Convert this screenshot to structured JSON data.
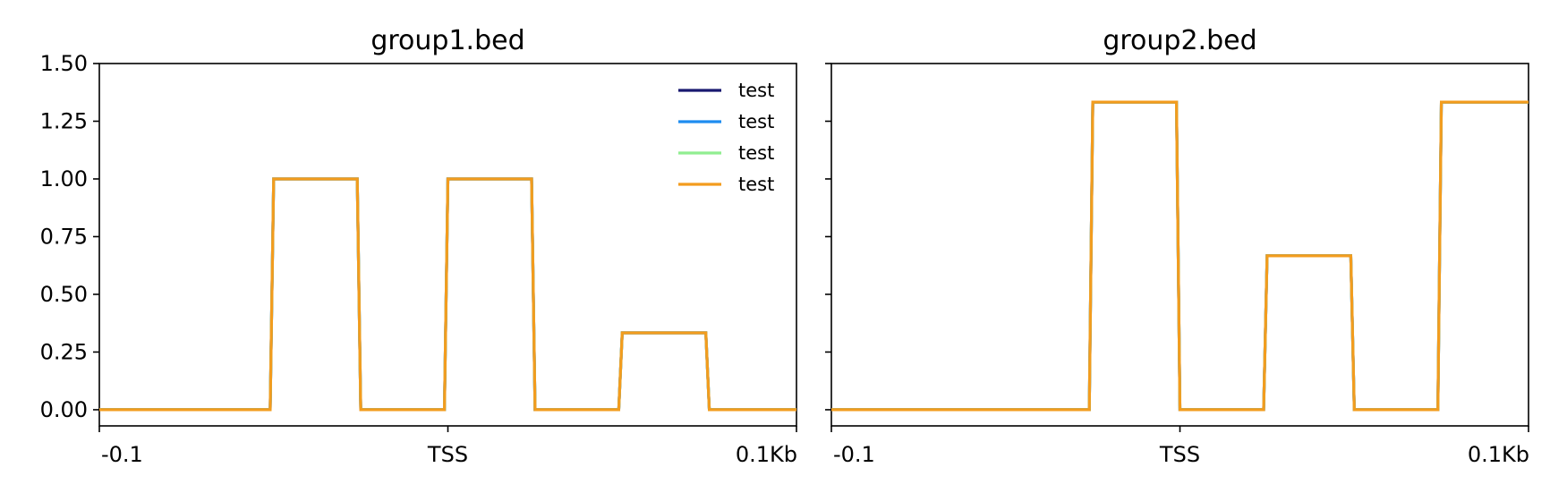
{
  "chart_data": [
    {
      "type": "line",
      "title": "group1.bed",
      "xlabel": "",
      "ylabel": "",
      "ylim": [
        -0.07,
        1.5
      ],
      "y_ticks": [
        "0.00",
        "0.25",
        "0.50",
        "0.75",
        "1.00",
        "1.25",
        "1.50"
      ],
      "x_ticks": [
        {
          "label": "-0.1",
          "pos": 0
        },
        {
          "label": "TSS",
          "pos": 0.5
        },
        {
          "label": "0.1Kb",
          "pos": 1
        }
      ],
      "show_y_tick_labels": true,
      "legend": {
        "placement": "top-right"
      },
      "series": [
        {
          "name": "test",
          "color": "#191970",
          "points": [
            [
              0,
              0
            ],
            [
              0.245,
              0
            ],
            [
              0.25,
              1
            ],
            [
              0.37,
              1
            ],
            [
              0.375,
              0
            ],
            [
              0.495,
              0
            ],
            [
              0.5,
              1
            ],
            [
              0.62,
              1
            ],
            [
              0.625,
              0
            ],
            [
              0.745,
              0
            ],
            [
              0.75,
              0.333
            ],
            [
              0.87,
              0.333
            ],
            [
              0.875,
              0
            ],
            [
              1,
              0
            ]
          ]
        },
        {
          "name": "test",
          "color": "#1e8cf0",
          "points": [
            [
              0,
              0
            ],
            [
              0.245,
              0
            ],
            [
              0.25,
              1
            ],
            [
              0.37,
              1
            ],
            [
              0.375,
              0
            ],
            [
              0.495,
              0
            ],
            [
              0.5,
              1
            ],
            [
              0.62,
              1
            ],
            [
              0.625,
              0
            ],
            [
              0.745,
              0
            ],
            [
              0.75,
              0.333
            ],
            [
              0.87,
              0.333
            ],
            [
              0.875,
              0
            ],
            [
              1,
              0
            ]
          ]
        },
        {
          "name": "test",
          "color": "#90ee90",
          "points": [
            [
              0,
              0
            ],
            [
              0.245,
              0
            ],
            [
              0.25,
              1
            ],
            [
              0.37,
              1
            ],
            [
              0.375,
              0
            ],
            [
              0.495,
              0
            ],
            [
              0.5,
              1
            ],
            [
              0.62,
              1
            ],
            [
              0.625,
              0
            ],
            [
              0.745,
              0
            ],
            [
              0.75,
              0.333
            ],
            [
              0.87,
              0.333
            ],
            [
              0.875,
              0
            ],
            [
              1,
              0
            ]
          ]
        },
        {
          "name": "test",
          "color": "#f39c1e",
          "points": [
            [
              0,
              0
            ],
            [
              0.245,
              0
            ],
            [
              0.25,
              1
            ],
            [
              0.37,
              1
            ],
            [
              0.375,
              0
            ],
            [
              0.495,
              0
            ],
            [
              0.5,
              1
            ],
            [
              0.62,
              1
            ],
            [
              0.625,
              0
            ],
            [
              0.745,
              0
            ],
            [
              0.75,
              0.333
            ],
            [
              0.87,
              0.333
            ],
            [
              0.875,
              0
            ],
            [
              1,
              0
            ]
          ]
        }
      ]
    },
    {
      "type": "line",
      "title": "group2.bed",
      "xlabel": "",
      "ylabel": "",
      "ylim": [
        -0.07,
        1.5
      ],
      "y_ticks": [
        "0.00",
        "0.25",
        "0.50",
        "0.75",
        "1.00",
        "1.25",
        "1.50"
      ],
      "x_ticks": [
        {
          "label": "-0.1",
          "pos": 0
        },
        {
          "label": "TSS",
          "pos": 0.5
        },
        {
          "label": "0.1Kb",
          "pos": 1
        }
      ],
      "show_y_tick_labels": false,
      "series": [
        {
          "name": "test",
          "color": "#191970",
          "points": [
            [
              0,
              0
            ],
            [
              0.37,
              0
            ],
            [
              0.375,
              1.333
            ],
            [
              0.495,
              1.333
            ],
            [
              0.5,
              0
            ],
            [
              0.62,
              0
            ],
            [
              0.625,
              0.667
            ],
            [
              0.745,
              0.667
            ],
            [
              0.75,
              0
            ],
            [
              0.87,
              0
            ],
            [
              0.875,
              1.333
            ],
            [
              1,
              1.333
            ]
          ]
        },
        {
          "name": "test",
          "color": "#1e8cf0",
          "points": [
            [
              0,
              0
            ],
            [
              0.37,
              0
            ],
            [
              0.375,
              1.333
            ],
            [
              0.495,
              1.333
            ],
            [
              0.5,
              0
            ],
            [
              0.62,
              0
            ],
            [
              0.625,
              0.667
            ],
            [
              0.745,
              0.667
            ],
            [
              0.75,
              0
            ],
            [
              0.87,
              0
            ],
            [
              0.875,
              1.333
            ],
            [
              1,
              1.333
            ]
          ]
        },
        {
          "name": "test",
          "color": "#90ee90",
          "points": [
            [
              0,
              0
            ],
            [
              0.37,
              0
            ],
            [
              0.375,
              1.333
            ],
            [
              0.495,
              1.333
            ],
            [
              0.5,
              0
            ],
            [
              0.62,
              0
            ],
            [
              0.625,
              0.667
            ],
            [
              0.745,
              0.667
            ],
            [
              0.75,
              0
            ],
            [
              0.87,
              0
            ],
            [
              0.875,
              1.333
            ],
            [
              1,
              1.333
            ]
          ]
        },
        {
          "name": "test",
          "color": "#f39c1e",
          "points": [
            [
              0,
              0
            ],
            [
              0.37,
              0
            ],
            [
              0.375,
              1.333
            ],
            [
              0.495,
              1.333
            ],
            [
              0.5,
              0
            ],
            [
              0.62,
              0
            ],
            [
              0.625,
              0.667
            ],
            [
              0.745,
              0.667
            ],
            [
              0.75,
              0
            ],
            [
              0.87,
              0
            ],
            [
              0.875,
              1.333
            ],
            [
              1,
              1.333
            ]
          ]
        }
      ]
    }
  ]
}
